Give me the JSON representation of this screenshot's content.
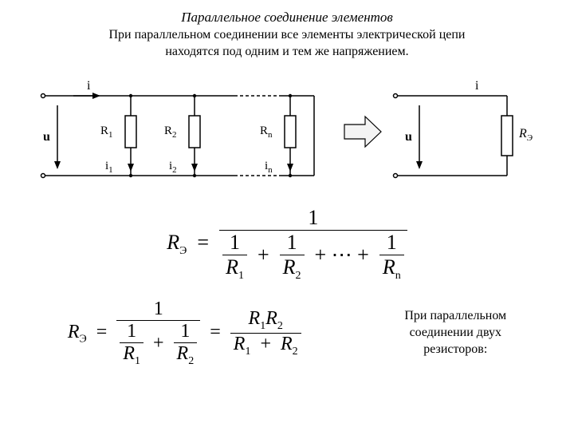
{
  "title": "Параллельное соединение элементов",
  "subtitle_line1": "При параллельном соединении все элементы электрической цепи",
  "subtitle_line2": "находятся под одним и тем же напряжением.",
  "diagram_left": {
    "i_top": "i",
    "u_left": "u",
    "branches": [
      {
        "R": "R",
        "Rsub": "1",
        "i": "i",
        "isub": "1"
      },
      {
        "R": "R",
        "Rsub": "2",
        "i": "i",
        "isub": "2"
      },
      {
        "R": "R",
        "Rsub": "n",
        "i": "i",
        "isub": "n"
      }
    ],
    "terminal_radius": 2.5,
    "resistor_w": 14,
    "resistor_h": 40,
    "stroke": "#000000",
    "dash": "4,3"
  },
  "diagram_right": {
    "i_top": "i",
    "u_left": "u",
    "R_label": "R",
    "R_sub": "Э",
    "stroke": "#000000"
  },
  "arrow": {
    "fill_outline": "#000000",
    "fill_body": "#f4f4f4"
  },
  "formula_main": {
    "lhs": "R",
    "lhs_sub": "Э",
    "num": "1",
    "terms": [
      {
        "num": "1",
        "den": "R",
        "densub": "1"
      },
      {
        "num": "1",
        "den": "R",
        "densub": "2"
      }
    ],
    "dots": "+ ⋯ +",
    "last": {
      "num": "1",
      "den": "R",
      "densub": "n"
    }
  },
  "formula_two": {
    "lhs": "R",
    "lhs_sub": "Э",
    "step1_num": "1",
    "step1_terms": [
      {
        "num": "1",
        "den": "R",
        "densub": "1"
      },
      {
        "num": "1",
        "den": "R",
        "densub": "2"
      }
    ],
    "step2_num_a": "R",
    "step2_num_a_sub": "1",
    "step2_num_b": "R",
    "step2_num_b_sub": "2",
    "step2_den_a": "R",
    "step2_den_a_sub": "1",
    "step2_den_b": "R",
    "step2_den_b_sub": "2"
  },
  "caption_two_line1": "При параллельном",
  "caption_two_line2": "соединении двух",
  "caption_two_line3": "резисторов:",
  "colors": {
    "text": "#000000",
    "bg": "#ffffff"
  },
  "fonts": {
    "title_size": 17,
    "body_size": 16,
    "eq_size": 24
  }
}
